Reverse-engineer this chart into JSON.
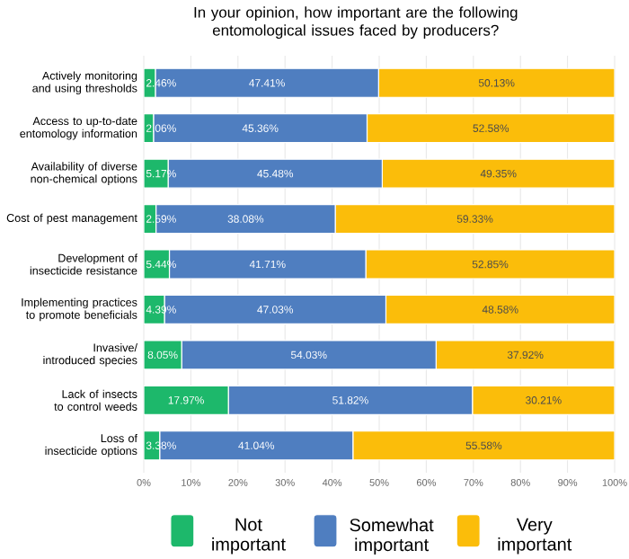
{
  "chart_data": {
    "type": "bar",
    "orientation": "horizontal",
    "stacked": true,
    "title": "In your opinion, how important are the following entomological issues faced by producers?",
    "categories": [
      "Actively monitoring and using thresholds",
      "Access to up-to-date entomology information",
      "Availability of diverse non-chemical options",
      "Cost of pest management",
      "Development of insecticide resistance",
      "Implementing practices to promote beneficials",
      "Invasive/ introduced species",
      "Lack of insects to control weeds",
      "Loss of insecticide options"
    ],
    "series": [
      {
        "name": "Not important",
        "color": "#1db86b",
        "values": [
          2.46,
          2.06,
          5.17,
          2.59,
          5.44,
          4.39,
          8.05,
          17.97,
          3.38
        ],
        "value_labels": [
          "2.46%",
          "2.06%",
          "5.17%",
          "2.59%",
          "5.44%",
          "4.39%",
          "8.05%",
          "17.97%",
          "3.38%"
        ]
      },
      {
        "name": "Somewhat important",
        "color": "#4f7ec0",
        "values": [
          47.41,
          45.36,
          45.48,
          38.08,
          41.71,
          47.03,
          54.03,
          51.82,
          41.04
        ],
        "value_labels": [
          "47.41%",
          "45.36%",
          "45.48%",
          "38.08%",
          "41.71%",
          "47.03%",
          "54.03%",
          "51.82%",
          "41.04%"
        ]
      },
      {
        "name": "Very important",
        "color": "#fbbd0a",
        "values": [
          50.13,
          52.58,
          49.35,
          59.33,
          52.85,
          48.58,
          37.92,
          30.21,
          55.58
        ],
        "value_labels": [
          "50.13%",
          "52.58%",
          "49.35%",
          "59.33%",
          "52.85%",
          "48.58%",
          "37.92%",
          "30.21%",
          "55.58%"
        ]
      }
    ],
    "xlim": [
      0,
      100
    ],
    "xticks": [
      {
        "value": 0,
        "label": "0%"
      },
      {
        "value": 10,
        "label": "10%"
      },
      {
        "value": 20,
        "label": "20%"
      },
      {
        "value": 30,
        "label": "30%"
      },
      {
        "value": 40,
        "label": "40%"
      },
      {
        "value": 50,
        "label": "50%"
      },
      {
        "value": 60,
        "label": "60%"
      },
      {
        "value": 70,
        "label": "70%"
      },
      {
        "value": 80,
        "label": "80%"
      },
      {
        "value": 90,
        "label": "90%"
      },
      {
        "value": 100,
        "label": "100%"
      }
    ],
    "grid": "x",
    "legend": "bottom"
  }
}
